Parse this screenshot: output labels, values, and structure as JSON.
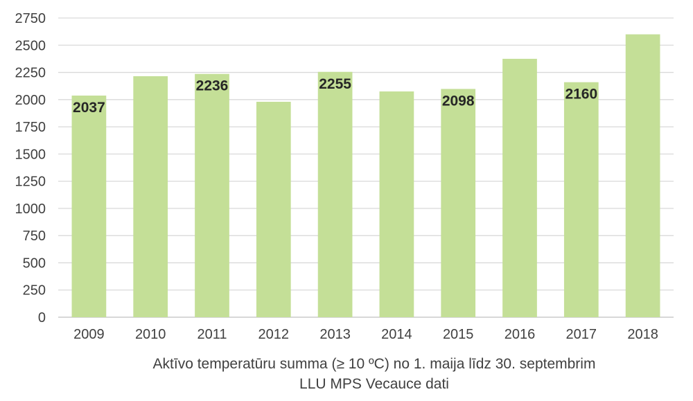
{
  "chart_data": {
    "type": "bar",
    "categories": [
      "2009",
      "2010",
      "2011",
      "2012",
      "2013",
      "2014",
      "2015",
      "2016",
      "2017",
      "2018"
    ],
    "values": [
      2037,
      2215,
      2236,
      1980,
      2255,
      2075,
      2098,
      2375,
      2160,
      2600
    ],
    "data_labels": [
      "2037",
      "",
      "2236",
      "",
      "2255",
      "",
      "2098",
      "",
      "2160",
      ""
    ],
    "yticks": [
      "0",
      "250",
      "500",
      "750",
      "1000",
      "1250",
      "1500",
      "1750",
      "2000",
      "2250",
      "2500",
      "2750"
    ],
    "ylim": [
      0,
      2750
    ],
    "grid": true,
    "legend": "none",
    "bar_color": "#c4df97",
    "grid_color": "#d9d9d9",
    "axis_color": "#bfbfbf",
    "caption_line1": "Aktīvo temperatūru summa (≥ 10 ºC) no 1. maija līdz 30. septembrim",
    "caption_line2": "LLU MPS Vecauce dati"
  }
}
